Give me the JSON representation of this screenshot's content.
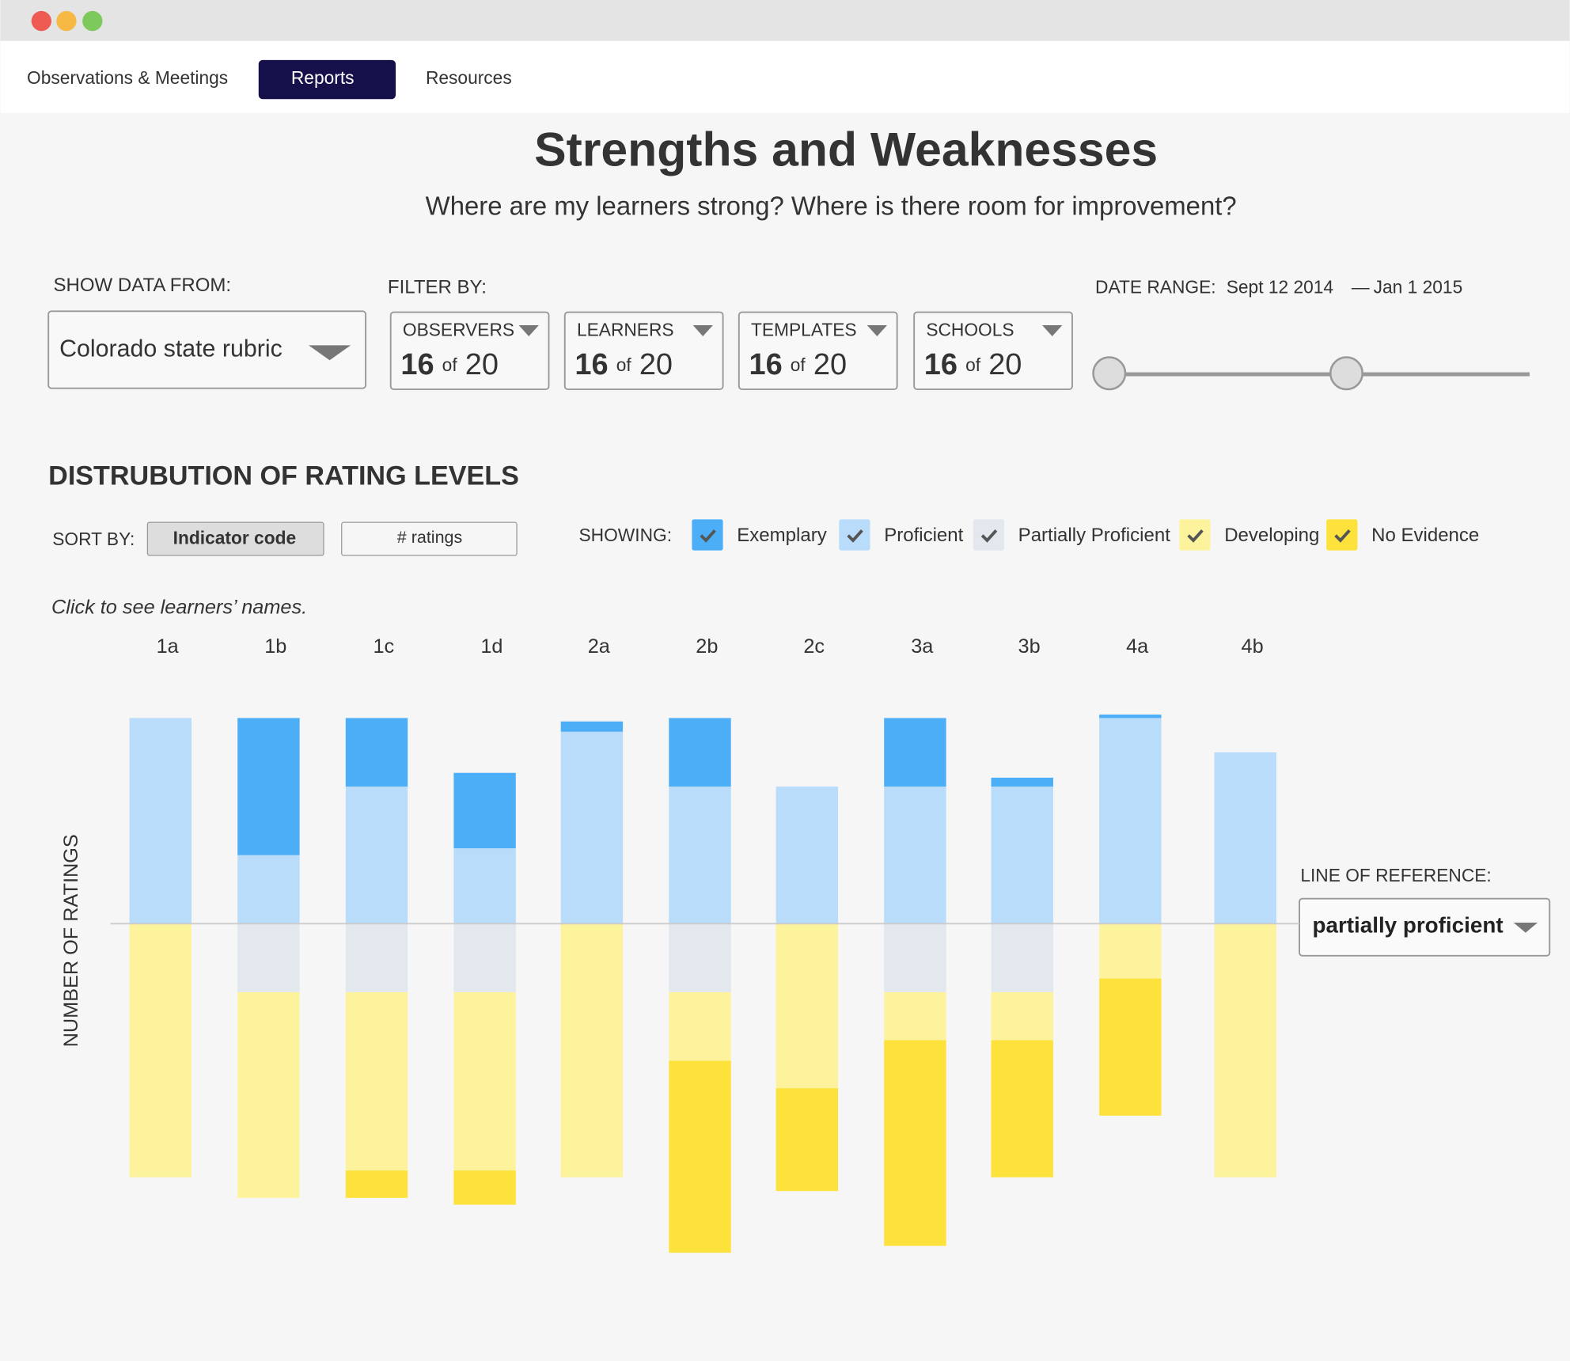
{
  "window": {
    "tabs": [
      "Observations & Meetings",
      "Reports",
      "Resources"
    ]
  },
  "header": {
    "title": "Strengths and Weaknesses",
    "subtitle": "Where are my learners strong? Where is there room for improvement?"
  },
  "controls": {
    "source_label": "SHOW DATA FROM:",
    "source": "Colorado state rubric",
    "filter_label": "FILTER BY:",
    "filters": [
      {
        "name": "OBSERVERS",
        "selected": 16,
        "of": "of",
        "total": 20
      },
      {
        "name": "LEARNERS",
        "selected": 16,
        "of": "of",
        "total": 20
      },
      {
        "name": "TEMPLATES",
        "selected": 16,
        "of": "of",
        "total": 20
      },
      {
        "name": "SCHOOLS",
        "selected": 16,
        "of": "of",
        "total": 20
      }
    ],
    "date_label": "DATE RANGE:",
    "date_start": "Sept 12 2014",
    "date_sep": "—",
    "date_end": "Jan 1 2015"
  },
  "chart_data": {
    "type": "diverging_bar",
    "title": "DISTRUBUTION OF RATING LEVELS",
    "sort_label": "SORT  BY:",
    "sort_options": [
      "Indicator code",
      "# ratings"
    ],
    "showing_label": "SHOWING:",
    "hint": "Click  to  see  learners’  names.",
    "y_label": "NUMBER OF RATINGS",
    "reference_label": "LINE OF REFERENCE:",
    "reference": "partially proficient",
    "categories": [
      "1a",
      "1b",
      "1c",
      "1d",
      "2a",
      "2b",
      "2c",
      "3a",
      "3b",
      "4a",
      "4b"
    ],
    "series": [
      {
        "name": "Exemplary",
        "color": "#4daef8",
        "values": [
          0,
          20,
          10,
          11,
          1.5,
          10,
          0,
          10,
          1.3,
          0.5,
          0
        ]
      },
      {
        "name": "Proficient",
        "color": "#b8dcfa",
        "values": [
          30,
          10,
          20,
          11,
          28,
          20,
          20,
          20,
          20,
          30,
          25
        ]
      },
      {
        "name": "Partially Proficient",
        "color": "#e3e8ee",
        "values": [
          0,
          10,
          10,
          10,
          0,
          10,
          0,
          10,
          10,
          0,
          0
        ]
      },
      {
        "name": "Developing",
        "color": "#fdf39c",
        "values": [
          37,
          30,
          26,
          26,
          37,
          10,
          24,
          7,
          7,
          8,
          37
        ]
      },
      {
        "name": "No Evidence",
        "color": "#fce23a",
        "values": [
          0,
          0,
          4,
          5,
          0,
          28,
          15,
          30,
          20,
          20,
          0
        ]
      }
    ]
  }
}
